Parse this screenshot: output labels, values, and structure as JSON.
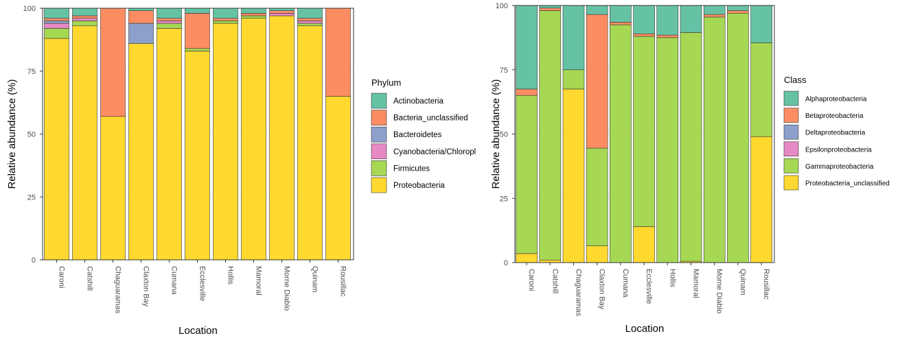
{
  "colors": {
    "Actinobacteria": "#66c2a5",
    "Bacteria_unclassified": "#fc8d62",
    "Bacteroidetes": "#8da0cb",
    "Cyanobacteria/Chloroplast": "#e78ac3",
    "Firmicutes": "#a6d854",
    "Proteobacteria": "#ffd92f",
    "Alphaproteobacteria": "#66c2a5",
    "Betaproteobacteria": "#fc8d62",
    "Deltaproteobacteria": "#8da0cb",
    "Epsilonproteobacteria": "#e78ac3",
    "Gammaproteobacteria": "#a6d854",
    "Proteobacteria_unclassified": "#ffd92f",
    "panel_border": "#333333",
    "grid": "#ebebeb"
  },
  "chart_data": [
    {
      "type": "bar",
      "stacked": true,
      "xlabel": "Location",
      "ylabel": "Relative abundance (%)",
      "ylim": [
        0,
        100
      ],
      "yticks": [
        "0",
        "25",
        "50",
        "75",
        "100"
      ],
      "categories": [
        "Caroni",
        "Catshill",
        "Chaguaramas",
        "Claxton Bay",
        "Cumana",
        "Ecclesville",
        "Hollis",
        "Mamoral",
        "Morne Diablo",
        "Quinam",
        "Rousillac"
      ],
      "legend_title": "Phylum",
      "legend_labels": [
        "Actinobacteria",
        "Bacteria_unclassified",
        "Bacteroidetes",
        "Cyanobacteria/Chloropl",
        "Firmicutes",
        "Proteobacteria"
      ],
      "series": [
        {
          "name": "Proteobacteria",
          "values": [
            88,
            93,
            57,
            86,
            92,
            83,
            94,
            96,
            97,
            93,
            65
          ]
        },
        {
          "name": "Firmicutes",
          "values": [
            4,
            2,
            0,
            0,
            2,
            1,
            1,
            1,
            0,
            1,
            0
          ]
        },
        {
          "name": "Cyanobacteria/Chloroplast",
          "values": [
            2,
            1,
            0,
            0,
            1,
            0,
            0,
            0,
            1,
            1,
            0
          ]
        },
        {
          "name": "Bacteroidetes",
          "values": [
            1,
            0,
            0,
            8,
            0,
            0,
            0,
            0,
            0,
            0,
            0
          ]
        },
        {
          "name": "Bacteria_unclassified",
          "values": [
            1,
            1,
            43,
            5,
            1,
            14,
            1,
            1,
            1,
            1,
            35
          ]
        },
        {
          "name": "Actinobacteria",
          "values": [
            4,
            3,
            0,
            1,
            4,
            2,
            4,
            2,
            1,
            4,
            0
          ]
        }
      ]
    },
    {
      "type": "bar",
      "stacked": true,
      "xlabel": "Location",
      "ylabel": "Relative abundance (%)",
      "ylim": [
        0,
        100
      ],
      "yticks": [
        "0",
        "25",
        "50",
        "75",
        "100"
      ],
      "categories": [
        "Caroni",
        "Catshill",
        "Chaguaramas",
        "Claxton Bay",
        "Cumana",
        "Ecclesville",
        "Hollis",
        "Mamoral",
        "Morne Diablo",
        "Quinam",
        "Rousillac"
      ],
      "legend_title": "Class",
      "legend_labels": [
        "Alphaproteobacteria",
        "Betaproteobacteria",
        "Deltaproteobacteria",
        "Epsilonproteobacteria",
        "Gammaproteobacteria",
        "Proteobacteria_unclassified"
      ],
      "series": [
        {
          "name": "Proteobacteria_unclassified",
          "values": [
            3.5,
            1,
            67.5,
            6.5,
            0,
            14,
            0,
            0.5,
            0,
            0,
            49
          ]
        },
        {
          "name": "Gammaproteobacteria",
          "values": [
            61.5,
            97,
            7.5,
            38,
            92.5,
            74,
            87.5,
            89,
            95.5,
            97,
            36.5
          ]
        },
        {
          "name": "Epsilonproteobacteria",
          "values": [
            0,
            0,
            0,
            0,
            0,
            0,
            0,
            0,
            0,
            0,
            0
          ]
        },
        {
          "name": "Deltaproteobacteria",
          "values": [
            0,
            0,
            0,
            0,
            0,
            0,
            0,
            0,
            0,
            0,
            0
          ]
        },
        {
          "name": "Betaproteobacteria",
          "values": [
            2.5,
            1,
            0,
            52,
            1,
            1,
            1,
            0,
            1,
            1,
            0
          ]
        },
        {
          "name": "Alphaproteobacteria",
          "values": [
            32.5,
            1,
            25,
            3.5,
            6.5,
            11,
            11.5,
            10.5,
            3.5,
            2,
            14.5
          ]
        }
      ]
    }
  ]
}
